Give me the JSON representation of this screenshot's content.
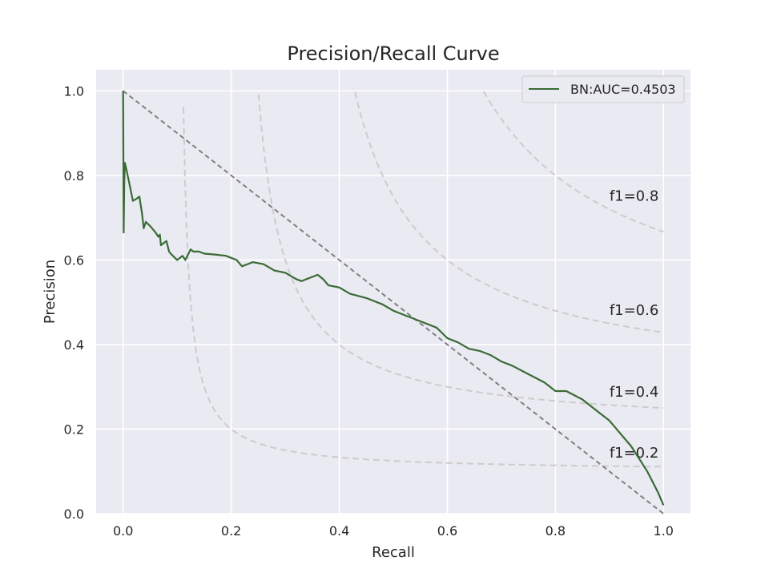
{
  "chart_data": {
    "type": "line",
    "title": "Precision/Recall Curve",
    "xlabel": "Recall",
    "ylabel": "Precision",
    "xlim": [
      -0.05,
      1.05
    ],
    "ylim": [
      0.0,
      1.05
    ],
    "xticks": [
      0.0,
      0.2,
      0.4,
      0.6,
      0.8,
      1.0
    ],
    "xtick_labels": [
      "0.0",
      "0.2",
      "0.4",
      "0.6",
      "0.8",
      "1.0"
    ],
    "yticks": [
      0.0,
      0.2,
      0.4,
      0.6,
      0.8,
      1.0
    ],
    "ytick_labels": [
      "0.0",
      "0.2",
      "0.4",
      "0.6",
      "0.8",
      "1.0"
    ],
    "grid": true,
    "legend_position": "top-right",
    "colors": {
      "series": "#3a6b35",
      "diagonal": "#808080",
      "iso_f1": "#cccccc",
      "plot_background": "#eaeaf2",
      "grid": "#ffffff"
    },
    "series": [
      {
        "name": "BN:AUC=0.4503",
        "x": [
          0.0,
          0.001,
          0.002,
          0.003,
          0.005,
          0.01,
          0.018,
          0.025,
          0.03,
          0.035,
          0.038,
          0.042,
          0.05,
          0.06,
          0.065,
          0.068,
          0.07,
          0.08,
          0.085,
          0.088,
          0.092,
          0.1,
          0.11,
          0.115,
          0.125,
          0.13,
          0.14,
          0.15,
          0.17,
          0.19,
          0.2,
          0.21,
          0.22,
          0.24,
          0.26,
          0.28,
          0.3,
          0.32,
          0.33,
          0.36,
          0.37,
          0.38,
          0.4,
          0.42,
          0.45,
          0.48,
          0.5,
          0.52,
          0.55,
          0.58,
          0.6,
          0.62,
          0.64,
          0.66,
          0.68,
          0.7,
          0.72,
          0.75,
          0.78,
          0.8,
          0.82,
          0.85,
          0.88,
          0.9,
          0.92,
          0.94,
          0.96,
          0.97,
          0.98,
          0.99,
          1.0
        ],
        "values": [
          1.0,
          0.665,
          0.78,
          0.83,
          0.82,
          0.79,
          0.74,
          0.745,
          0.75,
          0.71,
          0.675,
          0.69,
          0.68,
          0.665,
          0.655,
          0.66,
          0.635,
          0.645,
          0.62,
          0.615,
          0.61,
          0.6,
          0.61,
          0.6,
          0.625,
          0.62,
          0.62,
          0.615,
          0.613,
          0.61,
          0.605,
          0.6,
          0.585,
          0.595,
          0.59,
          0.575,
          0.57,
          0.555,
          0.55,
          0.565,
          0.555,
          0.54,
          0.535,
          0.52,
          0.51,
          0.495,
          0.48,
          0.47,
          0.455,
          0.44,
          0.415,
          0.405,
          0.39,
          0.385,
          0.375,
          0.36,
          0.35,
          0.33,
          0.31,
          0.29,
          0.29,
          0.27,
          0.24,
          0.22,
          0.19,
          0.16,
          0.12,
          0.1,
          0.075,
          0.05,
          0.02
        ]
      }
    ],
    "diagonal": {
      "x": [
        0.0,
        1.0
      ],
      "y": [
        1.0,
        0.0
      ]
    },
    "iso_f1": [
      {
        "f1": 0.2,
        "label": "f1=0.2"
      },
      {
        "f1": 0.4,
        "label": "f1=0.4"
      },
      {
        "f1": 0.6,
        "label": "f1=0.6"
      },
      {
        "f1": 0.8,
        "label": "f1=0.8"
      }
    ]
  }
}
